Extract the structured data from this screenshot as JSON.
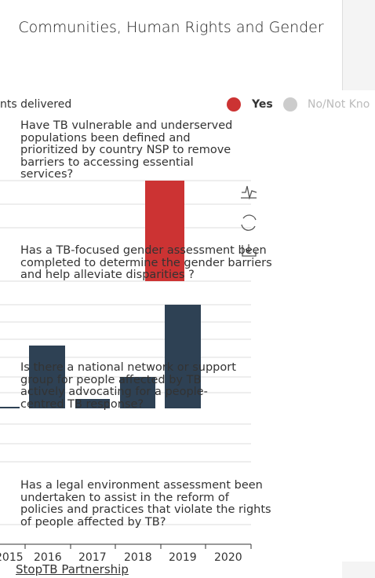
{
  "title": "Communities, Human Rights and Gender",
  "legend": {
    "label": "nts delivered",
    "items": [
      "Yes",
      "No/Not Kno"
    ]
  },
  "questions": [
    "Have TB vulnerable and underserved populations been defined and prioritized by country NSP to remove barriers to accessing essential services?",
    "Has a TB-focused gender assessment been completed to determine the gender barriers and help alleviate disparities ?",
    "Is there a national network or support group for people affected by TB actively advocating for a people-centred TB response?",
    "Has a legal environment assessment been undertaken to assist in the reform of policies and practices that violate the rights of people affected by TB?"
  ],
  "x_labels": [
    "2015",
    "2016",
    "2017",
    "2018",
    "2019",
    "2020"
  ],
  "footer": "StopTB Partnership"
}
